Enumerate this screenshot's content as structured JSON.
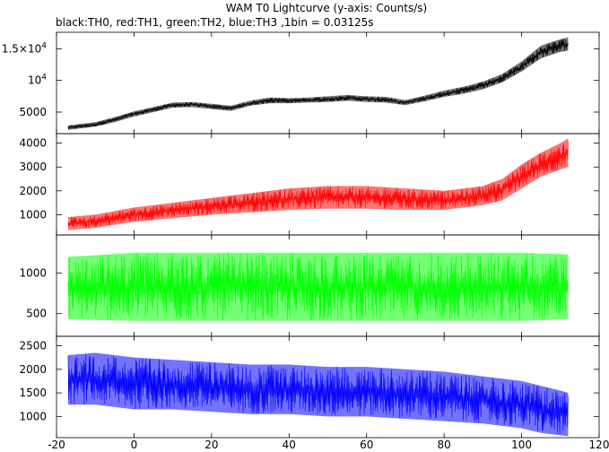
{
  "title": "WAM T0 Lightcurve (y-axis: Counts/s)",
  "subtitle": "black:TH0, red:TH1, green:TH2, blue:TH3 ,1bin = 0.03125s",
  "chart_data": [
    {
      "type": "line",
      "series": [
        {
          "color": "#000000",
          "band_hi": [
            [
              -17,
              2900
            ],
            [
              -10,
              3400
            ],
            [
              -5,
              4200
            ],
            [
              0,
              5100
            ],
            [
              5,
              5800
            ],
            [
              10,
              6500
            ],
            [
              15,
              6600
            ],
            [
              20,
              6300
            ],
            [
              25,
              6000
            ],
            [
              30,
              6800
            ],
            [
              35,
              7300
            ],
            [
              40,
              7200
            ],
            [
              45,
              7300
            ],
            [
              50,
              7500
            ],
            [
              55,
              7700
            ],
            [
              60,
              7500
            ],
            [
              65,
              7400
            ],
            [
              70,
              6900
            ],
            [
              75,
              7600
            ],
            [
              80,
              8400
            ],
            [
              85,
              9000
            ],
            [
              90,
              9800
            ],
            [
              95,
              11000
            ],
            [
              100,
              13000
            ],
            [
              105,
              15500
            ],
            [
              110,
              16500
            ],
            [
              112,
              16800
            ]
          ],
          "band_lo": [
            [
              -17,
              2200
            ],
            [
              -10,
              2700
            ],
            [
              -5,
              3400
            ],
            [
              0,
              4300
            ],
            [
              5,
              5000
            ],
            [
              10,
              5700
            ],
            [
              15,
              5800
            ],
            [
              20,
              5500
            ],
            [
              25,
              5200
            ],
            [
              30,
              6000
            ],
            [
              35,
              6400
            ],
            [
              40,
              6400
            ],
            [
              45,
              6500
            ],
            [
              50,
              6600
            ],
            [
              55,
              6800
            ],
            [
              60,
              6600
            ],
            [
              65,
              6500
            ],
            [
              70,
              6100
            ],
            [
              75,
              6700
            ],
            [
              80,
              7400
            ],
            [
              85,
              7900
            ],
            [
              90,
              8600
            ],
            [
              95,
              9700
            ],
            [
              100,
              11400
            ],
            [
              105,
              13500
            ],
            [
              110,
              14500
            ],
            [
              112,
              14700
            ]
          ]
        }
      ],
      "yticks": [
        {
          "v": 5000,
          "label": "5000"
        },
        {
          "v": 10000,
          "label": "10^4"
        },
        {
          "v": 15000,
          "label": "1.5×10^4"
        }
      ],
      "ylim": [
        1600,
        17600
      ]
    },
    {
      "type": "line",
      "series": [
        {
          "color": "#ff0000",
          "band_hi": [
            [
              -17,
              900
            ],
            [
              -10,
              1000
            ],
            [
              0,
              1300
            ],
            [
              10,
              1500
            ],
            [
              20,
              1700
            ],
            [
              30,
              1900
            ],
            [
              40,
              2100
            ],
            [
              50,
              2200
            ],
            [
              60,
              2200
            ],
            [
              70,
              2100
            ],
            [
              80,
              2000
            ],
            [
              90,
              2200
            ],
            [
              95,
              2500
            ],
            [
              100,
              3100
            ],
            [
              105,
              3600
            ],
            [
              110,
              4000
            ],
            [
              112,
              4200
            ]
          ],
          "band_lo": [
            [
              -17,
              350
            ],
            [
              -10,
              450
            ],
            [
              0,
              700
            ],
            [
              10,
              850
            ],
            [
              20,
              1000
            ],
            [
              30,
              1100
            ],
            [
              40,
              1200
            ],
            [
              50,
              1250
            ],
            [
              60,
              1250
            ],
            [
              70,
              1200
            ],
            [
              80,
              1200
            ],
            [
              90,
              1400
            ],
            [
              95,
              1600
            ],
            [
              100,
              2100
            ],
            [
              105,
              2600
            ],
            [
              110,
              2900
            ],
            [
              112,
              3000
            ]
          ]
        }
      ],
      "yticks": [
        {
          "v": 1000,
          "label": "1000"
        },
        {
          "v": 2000,
          "label": "2000"
        },
        {
          "v": 3000,
          "label": "3000"
        },
        {
          "v": 4000,
          "label": "4000"
        }
      ],
      "ylim": [
        150,
        4400
      ]
    },
    {
      "type": "line",
      "series": [
        {
          "color": "#00ff00",
          "band_hi": [
            [
              -17,
              1200
            ],
            [
              0,
              1250
            ],
            [
              20,
              1250
            ],
            [
              40,
              1250
            ],
            [
              60,
              1250
            ],
            [
              80,
              1250
            ],
            [
              100,
              1250
            ],
            [
              112,
              1230
            ]
          ],
          "band_lo": [
            [
              -17,
              430
            ],
            [
              0,
              410
            ],
            [
              20,
              410
            ],
            [
              40,
              410
            ],
            [
              60,
              410
            ],
            [
              80,
              410
            ],
            [
              100,
              410
            ],
            [
              112,
              430
            ]
          ]
        }
      ],
      "yticks": [
        {
          "v": 500,
          "label": "500"
        },
        {
          "v": 1000,
          "label": "1000"
        }
      ],
      "ylim": [
        220,
        1470
      ]
    },
    {
      "type": "line",
      "series": [
        {
          "color": "#0000ff",
          "band_hi": [
            [
              -17,
              2300
            ],
            [
              -10,
              2350
            ],
            [
              0,
              2250
            ],
            [
              10,
              2200
            ],
            [
              20,
              2150
            ],
            [
              30,
              2100
            ],
            [
              40,
              2100
            ],
            [
              50,
              2050
            ],
            [
              60,
              2050
            ],
            [
              70,
              2000
            ],
            [
              80,
              1950
            ],
            [
              90,
              1850
            ],
            [
              100,
              1750
            ],
            [
              105,
              1650
            ],
            [
              110,
              1550
            ],
            [
              112,
              1500
            ]
          ],
          "band_lo": [
            [
              -17,
              1250
            ],
            [
              -10,
              1250
            ],
            [
              0,
              1150
            ],
            [
              10,
              1150
            ],
            [
              20,
              1100
            ],
            [
              30,
              1050
            ],
            [
              40,
              1050
            ],
            [
              50,
              1000
            ],
            [
              60,
              1000
            ],
            [
              70,
              950
            ],
            [
              80,
              900
            ],
            [
              90,
              850
            ],
            [
              100,
              750
            ],
            [
              105,
              650
            ],
            [
              110,
              600
            ],
            [
              112,
              580
            ]
          ]
        }
      ],
      "yticks": [
        {
          "v": 1000,
          "label": "1000"
        },
        {
          "v": 1500,
          "label": "1500"
        },
        {
          "v": 2000,
          "label": "2000"
        },
        {
          "v": 2500,
          "label": "2500"
        }
      ],
      "ylim": [
        550,
        2700
      ]
    }
  ],
  "xaxis": {
    "xlim": [
      -20,
      120
    ],
    "ticks": [
      -20,
      0,
      20,
      40,
      60,
      80,
      100,
      120
    ]
  }
}
